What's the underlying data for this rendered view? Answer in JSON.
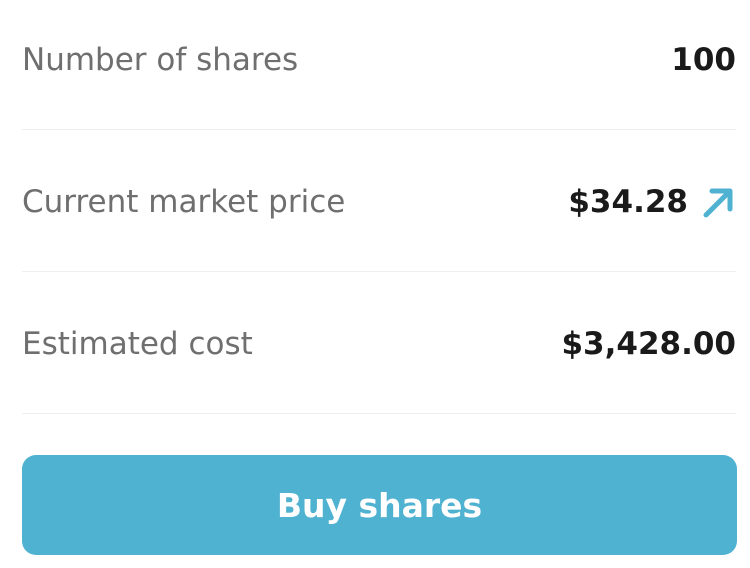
{
  "rows": [
    {
      "label": "Number of shares",
      "value": "100"
    },
    {
      "label": "Current market price",
      "value": "$34.28",
      "icon": "arrow-up-right-icon"
    },
    {
      "label": "Estimated cost",
      "value": "$3,428.00"
    }
  ],
  "button": {
    "label": "Buy shares"
  },
  "colors": {
    "accent": "#50b2d1",
    "label": "#6f6f6f",
    "value": "#1a1a1a"
  }
}
